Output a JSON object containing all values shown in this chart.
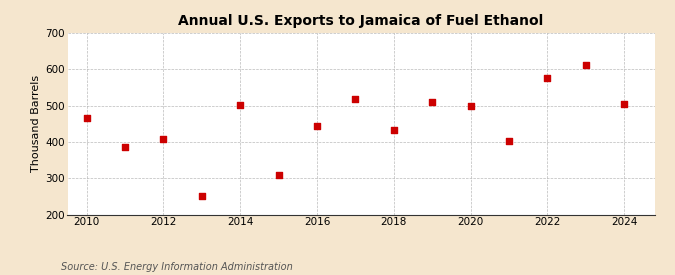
{
  "title": "Annual U.S. Exports to Jamaica of Fuel Ethanol",
  "ylabel": "Thousand Barrels",
  "source": "Source: U.S. Energy Information Administration",
  "years": [
    2010,
    2011,
    2012,
    2013,
    2014,
    2015,
    2016,
    2017,
    2018,
    2019,
    2020,
    2021,
    2022,
    2023,
    2024
  ],
  "values": [
    465,
    385,
    407,
    250,
    503,
    310,
    443,
    517,
    432,
    510,
    500,
    403,
    577,
    612,
    505
  ],
  "marker_color": "#cc0000",
  "marker": "s",
  "marker_size": 4,
  "background_color": "#f5e6ce",
  "plot_bg_color": "#ffffff",
  "grid_color": "#aaaaaa",
  "ylim": [
    200,
    700
  ],
  "yticks": [
    200,
    300,
    400,
    500,
    600,
    700
  ],
  "xlim": [
    2009.5,
    2024.8
  ],
  "xticks": [
    2010,
    2012,
    2014,
    2016,
    2018,
    2020,
    2022,
    2024
  ],
  "title_fontsize": 10,
  "ylabel_fontsize": 8,
  "tick_fontsize": 7.5,
  "source_fontsize": 7
}
